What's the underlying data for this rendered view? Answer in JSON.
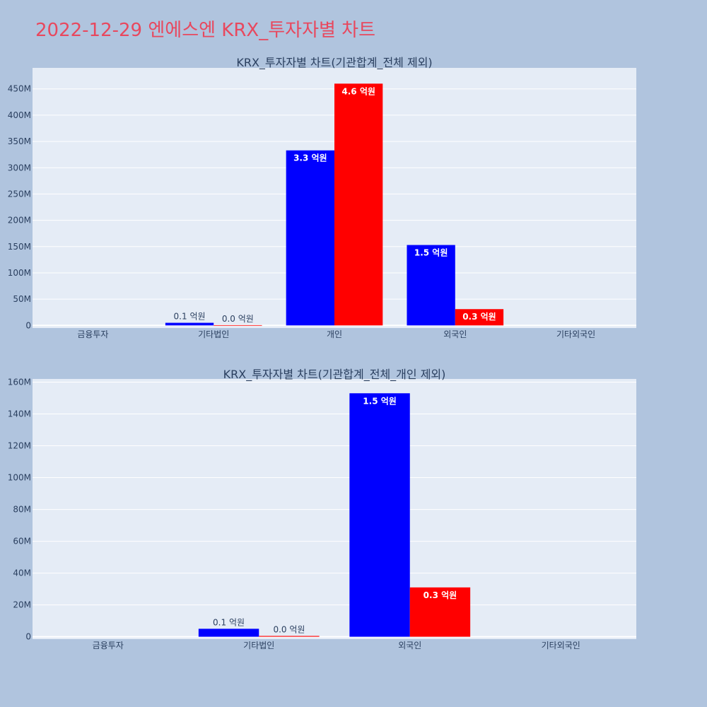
{
  "page": {
    "title": "2022-12-29 엔에스엔 KRX_투자자별 차트"
  },
  "colors": {
    "background": "#b0c4de",
    "plot_bg": "#e5ecf6",
    "title": "#e8485e",
    "series_a": "#0000ff",
    "series_b": "#ff0000"
  },
  "chart_data": [
    {
      "type": "bar",
      "title": "KRX_투자자별 차트(기관합계_전체 제외)",
      "categories": [
        "금융투자",
        "기타법인",
        "개인",
        "외국인",
        "기타외국인"
      ],
      "series": [
        {
          "color": "#0000ff",
          "values": [
            0,
            5000000,
            333000000,
            153000000,
            0
          ],
          "labels": [
            "",
            "0.1 억원",
            "3.3 억원",
            "1.5 억원",
            ""
          ]
        },
        {
          "color": "#ff0000",
          "values": [
            0,
            500000,
            460000000,
            31000000,
            0
          ],
          "labels": [
            "",
            "0.0 억원",
            "4.6 억원",
            "0.3 억원",
            ""
          ]
        }
      ],
      "ylim": [
        -5000000,
        490000000
      ],
      "yticks": [
        0,
        50000000,
        100000000,
        150000000,
        200000000,
        250000000,
        300000000,
        350000000,
        400000000,
        450000000
      ],
      "ytick_labels": [
        "0",
        "50M",
        "100M",
        "150M",
        "200M",
        "250M",
        "300M",
        "350M",
        "400M",
        "450M"
      ],
      "grid": true
    },
    {
      "type": "bar",
      "title": "KRX_투자자별 차트(기관합계_전체_개인 제외)",
      "categories": [
        "금융투자",
        "기타법인",
        "외국인",
        "기타외국인"
      ],
      "series": [
        {
          "color": "#0000ff",
          "values": [
            0,
            5000000,
            153000000,
            0
          ],
          "labels": [
            "",
            "0.1 억원",
            "1.5 억원",
            ""
          ]
        },
        {
          "color": "#ff0000",
          "values": [
            0,
            500000,
            31000000,
            0
          ],
          "labels": [
            "",
            "0.0 억원",
            "0.3 억원",
            ""
          ]
        }
      ],
      "ylim": [
        -1500000,
        162000000
      ],
      "yticks": [
        0,
        20000000,
        40000000,
        60000000,
        80000000,
        100000000,
        120000000,
        140000000,
        160000000
      ],
      "ytick_labels": [
        "0",
        "20M",
        "40M",
        "60M",
        "80M",
        "100M",
        "120M",
        "140M",
        "160M"
      ],
      "grid": true
    }
  ]
}
